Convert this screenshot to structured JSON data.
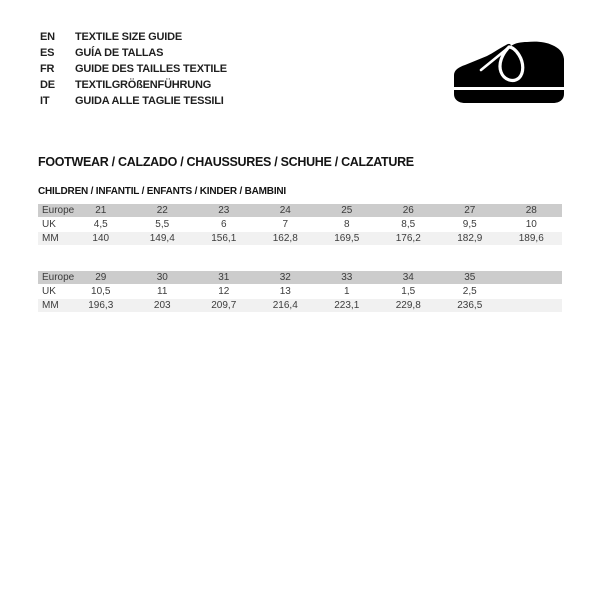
{
  "languages": [
    {
      "code": "EN",
      "label": "TEXTILE SIZE GUIDE"
    },
    {
      "code": "ES",
      "label": "GUÍA DE TALLAS"
    },
    {
      "code": "FR",
      "label": "GUIDE DES TAILLES TEXTILE"
    },
    {
      "code": "DE",
      "label": "TEXTILGRÖßENFÜHRUNG"
    },
    {
      "code": "IT",
      "label": "GUIDA ALLE TAGLIE TESSILI"
    }
  ],
  "icon": {
    "name": "children-shoe-icon",
    "color": "#000000"
  },
  "section": {
    "title": "FOOTWEAR / CALZADO / CHAUSSURES / SCHUHE / CALZATURE",
    "subtitle": "CHILDREN / INFANTIL / ENFANTS / KINDER / BAMBINI"
  },
  "chart_data": {
    "type": "table",
    "title": "FOOTWEAR / CALZADO / CHAUSSURES / SCHUHE / CALZATURE",
    "subtitle": "CHILDREN / INFANTIL / ENFANTS / KINDER / BAMBINI",
    "tables": [
      {
        "rows": [
          {
            "label": "Europe",
            "values": [
              "21",
              "22",
              "23",
              "24",
              "25",
              "26",
              "27",
              "28"
            ]
          },
          {
            "label": "UK",
            "values": [
              "4,5",
              "5,5",
              "6",
              "7",
              "8",
              "8,5",
              "9,5",
              "10"
            ]
          },
          {
            "label": "MM",
            "values": [
              "140",
              "149,4",
              "156,1",
              "162,8",
              "169,5",
              "176,2",
              "182,9",
              "189,6"
            ]
          }
        ]
      },
      {
        "rows": [
          {
            "label": "Europe",
            "values": [
              "29",
              "30",
              "31",
              "32",
              "33",
              "34",
              "35",
              ""
            ]
          },
          {
            "label": "UK",
            "values": [
              "10,5",
              "11",
              "12",
              "13",
              "1",
              "1,5",
              "2,5",
              ""
            ]
          },
          {
            "label": "MM",
            "values": [
              "196,3",
              "203",
              "209,7",
              "216,4",
              "223,1",
              "229,8",
              "236,5",
              ""
            ]
          }
        ]
      }
    ]
  },
  "colors": {
    "row_dark": "#cccccc",
    "row_light": "#f1f1f1",
    "row_white": "#ffffff",
    "table_text": "#3c3c3c",
    "heading_text": "#141414",
    "icon": "#000000"
  }
}
